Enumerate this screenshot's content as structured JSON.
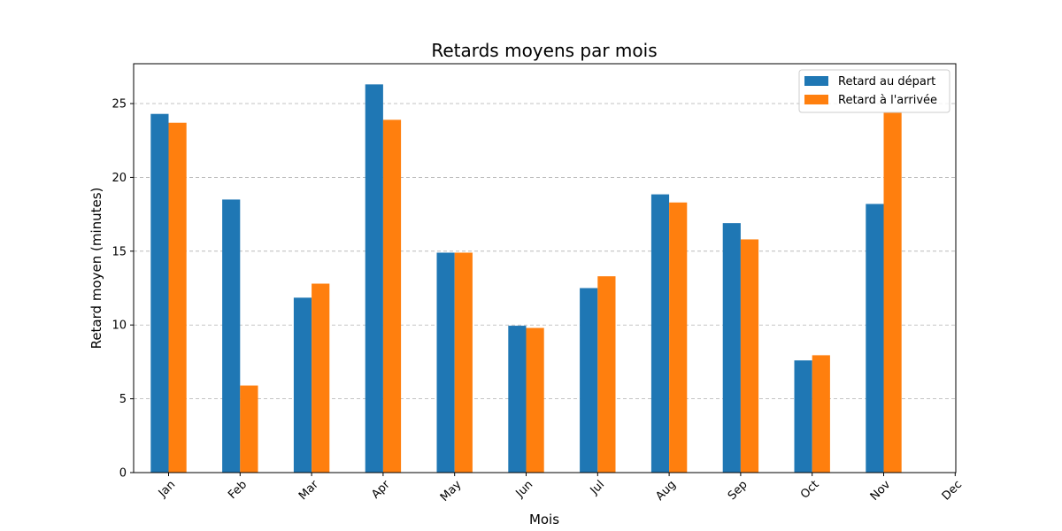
{
  "chart_data": {
    "type": "bar",
    "title": "Retards moyens par mois",
    "xlabel": "Mois",
    "ylabel": "Retard moyen (minutes)",
    "categories": [
      "Jan",
      "Feb",
      "Mar",
      "Apr",
      "May",
      "Jun",
      "Jul",
      "Aug",
      "Sep",
      "Oct",
      "Nov",
      "Dec"
    ],
    "series": [
      {
        "name": "Retard au départ",
        "color": "#1f77b4",
        "values": [
          24.3,
          18.5,
          11.85,
          26.3,
          14.9,
          9.95,
          12.5,
          18.85,
          16.9,
          7.6,
          18.2,
          null
        ]
      },
      {
        "name": "Retard à l'arrivée",
        "color": "#ff7f0e",
        "values": [
          23.7,
          5.9,
          12.8,
          23.9,
          14.9,
          9.8,
          13.3,
          18.3,
          15.8,
          7.95,
          24.4,
          null
        ]
      }
    ],
    "ylim": [
      0,
      27.7
    ],
    "yticks": [
      0,
      5,
      10,
      15,
      20,
      25
    ],
    "grid": "y-dashed",
    "legend_position": "top-right"
  }
}
